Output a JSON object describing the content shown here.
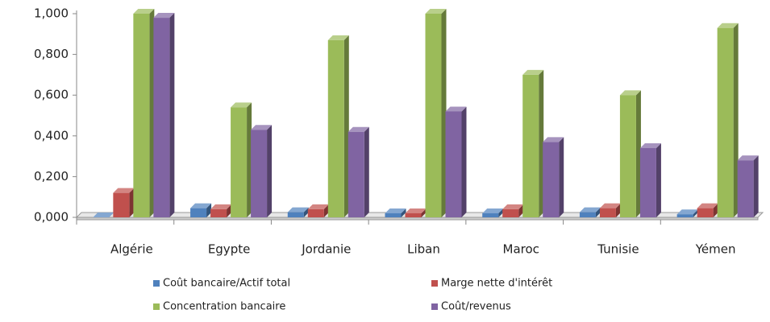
{
  "chart_data": {
    "type": "bar3d",
    "categories": [
      "Algérie",
      "Egypte",
      "Jordanie",
      "Liban",
      "Maroc",
      "Tunisie",
      "Yémen"
    ],
    "series": [
      {
        "name": "Coût bancaire/Actif total",
        "color": "#4f81bd",
        "values": [
          0,
          0.045,
          0.025,
          0.02,
          0.02,
          0.025,
          0.015
        ]
      },
      {
        "name": "Marge nette d'intérêt",
        "color": "#c0504d",
        "values": [
          0.12,
          0.04,
          0.04,
          0.02,
          0.04,
          0.045,
          0.045
        ]
      },
      {
        "name": "Concentration bancaire",
        "color": "#9bbb59",
        "values": [
          1.0,
          0.54,
          0.87,
          1.0,
          0.7,
          0.6,
          0.93
        ]
      },
      {
        "name": "Coût/revenus",
        "color": "#8064a2",
        "values": [
          0.98,
          0.43,
          0.42,
          0.52,
          0.37,
          0.34,
          0.28
        ]
      }
    ],
    "ylim": [
      0,
      1
    ],
    "yticks": [
      {
        "value": 0,
        "label": "0,000"
      },
      {
        "value": 0.2,
        "label": "0,200"
      },
      {
        "value": 0.4,
        "label": "0,400"
      },
      {
        "value": 0.6,
        "label": "0,600"
      },
      {
        "value": 0.8,
        "label": "0,800"
      },
      {
        "value": 1,
        "label": "1,000"
      }
    ]
  }
}
